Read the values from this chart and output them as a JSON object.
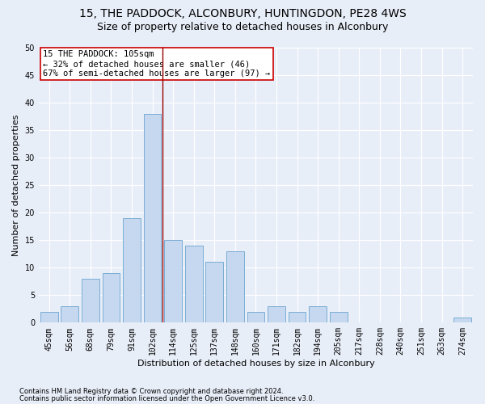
{
  "title": "15, THE PADDOCK, ALCONBURY, HUNTINGDON, PE28 4WS",
  "subtitle": "Size of property relative to detached houses in Alconbury",
  "xlabel": "Distribution of detached houses by size in Alconbury",
  "ylabel": "Number of detached properties",
  "categories": [
    "45sqm",
    "56sqm",
    "68sqm",
    "79sqm",
    "91sqm",
    "102sqm",
    "114sqm",
    "125sqm",
    "137sqm",
    "148sqm",
    "160sqm",
    "171sqm",
    "182sqm",
    "194sqm",
    "205sqm",
    "217sqm",
    "228sqm",
    "240sqm",
    "251sqm",
    "263sqm",
    "274sqm"
  ],
  "values": [
    2,
    3,
    8,
    9,
    19,
    38,
    15,
    14,
    11,
    13,
    2,
    3,
    2,
    3,
    2,
    0,
    0,
    0,
    0,
    0,
    1
  ],
  "bar_color": "#c5d8f0",
  "bar_edge_color": "#7aadd4",
  "ref_line_x": 5.5,
  "ref_line_color": "#9b0000",
  "annotation_title": "15 THE PADDOCK: 105sqm",
  "annotation_line1": "← 32% of detached houses are smaller (46)",
  "annotation_line2": "67% of semi-detached houses are larger (97) →",
  "annotation_box_color": "#cc0000",
  "ylim": [
    0,
    50
  ],
  "yticks": [
    0,
    5,
    10,
    15,
    20,
    25,
    30,
    35,
    40,
    45,
    50
  ],
  "footnote1": "Contains HM Land Registry data © Crown copyright and database right 2024.",
  "footnote2": "Contains public sector information licensed under the Open Government Licence v3.0.",
  "bg_color": "#e8eef8",
  "plot_bg_color": "#e8eef8",
  "grid_color": "#ffffff",
  "title_fontsize": 10,
  "subtitle_fontsize": 9,
  "axis_label_fontsize": 8,
  "tick_fontsize": 7,
  "annotation_fontsize": 7.5,
  "footnote_fontsize": 6
}
